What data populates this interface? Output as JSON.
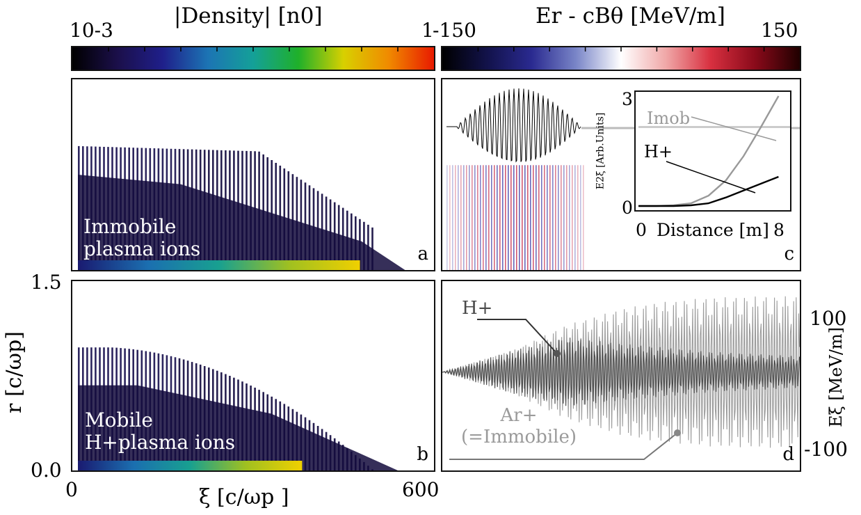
{
  "chart_data": [
    {
      "type": "heatmap",
      "panel_letter": "a",
      "colorbar_title": "|Density| [n0]",
      "colorbar_tick_min": "10-3",
      "colorbar_tick_max": "1",
      "colormap": [
        "#000000",
        "#1b0f4a",
        "#1f1f8a",
        "#1c74b4",
        "#14a098",
        "#1fb02a",
        "#d8d000",
        "#f08a00",
        "#e81a00"
      ],
      "annotation_lines": [
        "Immobile",
        "plasma ions"
      ],
      "xlim": [
        0,
        600
      ],
      "ylim": [
        0.0,
        1.5
      ]
    },
    {
      "type": "heatmap",
      "panel_letter": "b",
      "annotation_lines": [
        "Mobile",
        "H+plasma ions"
      ],
      "xlabel": "ξ [c/ωp ]",
      "ylabel": "r [c/ωp]",
      "x_ticks": [
        "0",
        "600"
      ],
      "y_ticks": [
        "0.0",
        "1.5"
      ],
      "xlim": [
        0,
        600
      ],
      "ylim": [
        0.0,
        1.5
      ]
    },
    {
      "type": "heatmap",
      "panel_letter": "c",
      "colorbar_title": "Er - cBθ [MeV/m]",
      "colorbar_tick_min": "-150",
      "colorbar_tick_max": "150",
      "colormap": [
        "#000000",
        "#12124a",
        "#2a2a90",
        "#7a86c8",
        "#ffffff",
        "#f0a8a8",
        "#d83040",
        "#8a0a1a",
        "#200000"
      ],
      "inset": {
        "type": "line",
        "xlabel": "Distance [m]",
        "ylabel": "E2ξ [Arb.Units]",
        "x_ticks": [
          "0",
          "8"
        ],
        "y_ticks": [
          "0",
          "3"
        ],
        "xlim": [
          0,
          8.5
        ],
        "ylim": [
          0,
          3.2
        ],
        "series": [
          {
            "name": "Imob",
            "color": "#999999",
            "x": [
              0,
              1,
              2,
              3,
              4,
              5,
              6,
              7,
              8
            ],
            "y": [
              0.0,
              0.0,
              0.02,
              0.08,
              0.3,
              0.75,
              1.45,
              2.3,
              3.2
            ]
          },
          {
            "name": "H+",
            "color": "#000000",
            "x": [
              0,
              1,
              2,
              3,
              4,
              5,
              6,
              7,
              8
            ],
            "y": [
              0.0,
              0.0,
              0.0,
              0.02,
              0.08,
              0.25,
              0.45,
              0.65,
              0.85
            ]
          }
        ]
      }
    },
    {
      "type": "line",
      "panel_letter": "d",
      "ylabel": "Eξ [MeV/m]",
      "y_ticks": [
        "100",
        "-100"
      ],
      "ylim": [
        -150,
        150
      ],
      "series": [
        {
          "name": "H+",
          "color": "#4a4a4a",
          "envelope_x_frac": [
            0.0,
            0.2,
            0.35,
            0.5,
            0.6,
            0.75,
            0.9,
            1.0
          ],
          "envelope_amp": [
            0,
            35,
            55,
            45,
            40,
            32,
            28,
            25
          ]
        },
        {
          "name": "Ar+ (=Immobile)",
          "color": "#9a9a9a",
          "envelope_x_frac": [
            0.0,
            0.2,
            0.35,
            0.5,
            0.6,
            0.75,
            0.9,
            1.0
          ],
          "envelope_amp": [
            0,
            35,
            75,
            100,
            110,
            118,
            120,
            120
          ]
        }
      ]
    }
  ]
}
